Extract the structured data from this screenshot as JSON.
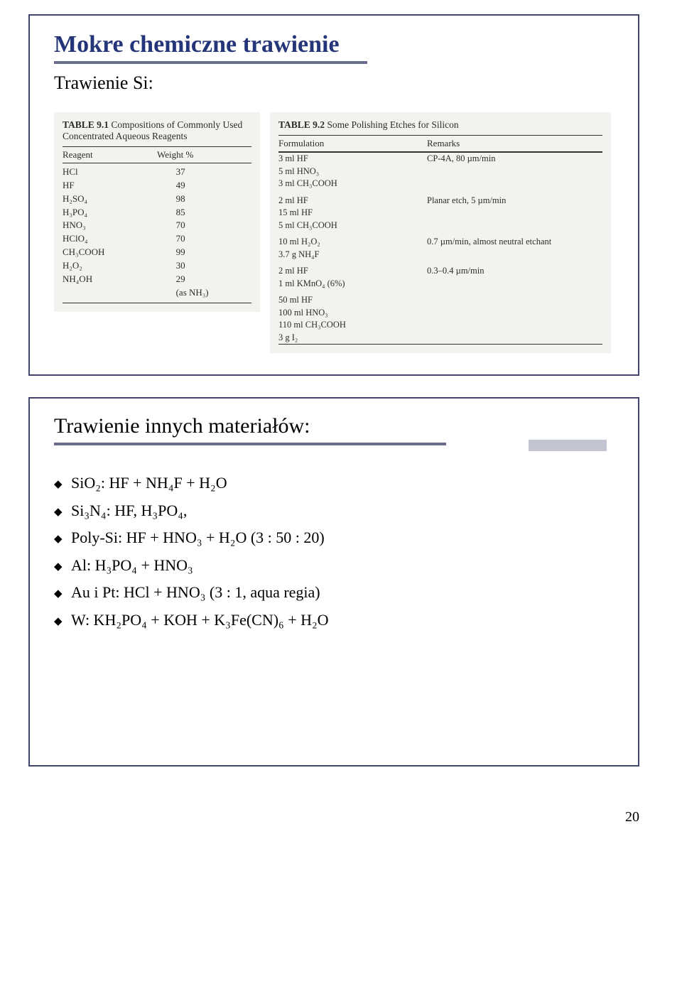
{
  "slide1": {
    "title": "Mokre chemiczne trawienie",
    "subtitle": "Trawienie Si:",
    "table1": {
      "caption_bold": "TABLE 9.1",
      "caption_rest": "Compositions of Commonly Used Concentrated Aqueous Reagents",
      "head_left": "Reagent",
      "head_right": "Weight %",
      "rows": [
        [
          "HCl",
          "37"
        ],
        [
          "HF",
          "49"
        ],
        [
          "H₂SO₄",
          "98"
        ],
        [
          "H₃PO₄",
          "85"
        ],
        [
          "HNO₃",
          "70"
        ],
        [
          "HClO₄",
          "70"
        ],
        [
          "CH₃COOH",
          "99"
        ],
        [
          "H₂O₂",
          "30"
        ],
        [
          "NH₄OH",
          "29"
        ],
        [
          "",
          "(as NH₃)"
        ]
      ]
    },
    "table2": {
      "caption_bold": "TABLE 9.2",
      "caption_rest": "Some Polishing Etches for Silicon",
      "head_left": "Formulation",
      "head_right": "Remarks",
      "groups": [
        {
          "left": [
            "3 ml HF",
            "5 ml HNO₃",
            "3 ml CH₃COOH"
          ],
          "right": "CP-4A, 80 µm/min"
        },
        {
          "left": [
            "2 ml HF",
            "15 ml HF",
            "5 ml CH₃COOH"
          ],
          "right": "Planar etch, 5 µm/min"
        },
        {
          "left": [
            "10 ml H₂O₂",
            "3.7 g NH₄F"
          ],
          "right": "0.7 µm/min, almost neutral etchant"
        },
        {
          "left": [
            "2 ml HF",
            "1 ml KMnO₄ (6%)"
          ],
          "right": "0.3–0.4 µm/min"
        },
        {
          "left": [
            "50 ml HF",
            "100 ml HNO₃",
            "110 ml CH₃COOH",
            "3 g I₂"
          ],
          "right": ""
        }
      ]
    }
  },
  "slide2": {
    "heading": "Trawienie innych materiałów:",
    "bullets": [
      "SiO₂:  HF + NH₄F + H₂O",
      "Si₃N₄:  HF,  H₃PO₄,",
      "Poly-Si: HF + HNO₃ + H₂O  (3 : 50 : 20)",
      "Al:          H₃PO₄ + HNO₃",
      "Au i Pt:       HCl + HNO₃  (3 : 1, aqua regia)",
      "W:  KH₂PO₄ + KOH + K₃Fe(CN)₆ + H₂O"
    ]
  },
  "page_number": "20",
  "style": {
    "title_color": "#24357a",
    "rule_color": "#686d8e",
    "border_color": "#40456d",
    "bg_table": "#f2f2ee",
    "deco_fill": "#c2c4d2"
  }
}
